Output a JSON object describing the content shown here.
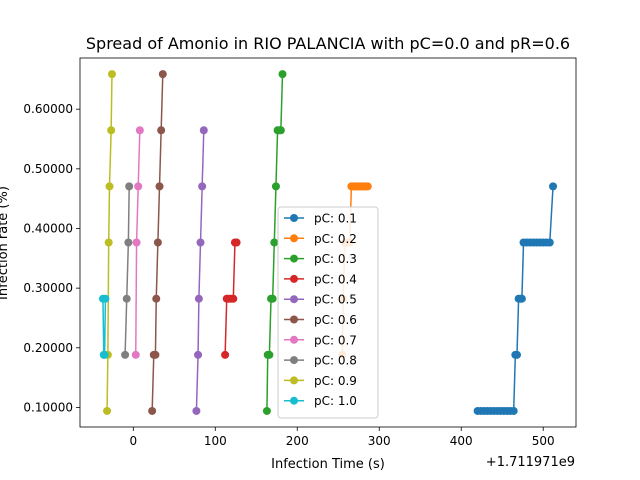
{
  "chart_data": {
    "type": "line",
    "title": "Spread of Amonio in RIO PALANCIA with pC=0.0 and pR=0.6",
    "xlabel": "Infection Time (s)",
    "ylabel": "Infection rate (%)",
    "x_offset_label": "+1.711971e9",
    "xlim": [
      -65,
      540
    ],
    "ylim": [
      0.0672,
      0.6858
    ],
    "x_ticks": [
      0,
      100,
      200,
      300,
      400,
      500
    ],
    "x_tick_labels": [
      "0",
      "100",
      "200",
      "300",
      "400",
      "500"
    ],
    "y_ticks": [
      0.1,
      0.2,
      0.3,
      0.4,
      0.5,
      0.6
    ],
    "y_tick_labels": [
      "0.10000",
      "0.20000",
      "0.30000",
      "0.40000",
      "0.50000",
      "0.60000"
    ],
    "grid": false,
    "legend_position": "lower-center",
    "series": [
      {
        "name": "pC: 0.1",
        "color": "#1f77b4",
        "x": [
          420,
          424,
          428,
          432,
          436,
          440,
          444,
          448,
          452,
          456,
          460,
          464,
          466,
          468,
          470,
          472,
          474,
          476,
          480,
          484,
          488,
          492,
          496,
          500,
          504,
          508,
          512
        ],
        "y": [
          0.0941,
          0.0941,
          0.0941,
          0.0941,
          0.0941,
          0.0941,
          0.0941,
          0.0941,
          0.0941,
          0.0941,
          0.0941,
          0.0941,
          0.1882,
          0.1882,
          0.2823,
          0.2823,
          0.2823,
          0.3765,
          0.3765,
          0.3765,
          0.3765,
          0.3765,
          0.3765,
          0.3765,
          0.3765,
          0.3765,
          0.4706
        ]
      },
      {
        "name": "pC: 0.2",
        "color": "#ff7f0e",
        "x": [
          255,
          256,
          258,
          262,
          264,
          266,
          268,
          270,
          272,
          274,
          276,
          278,
          280,
          282,
          284,
          286
        ],
        "y": [
          0.1882,
          0.2823,
          0.3765,
          0.3765,
          0.3765,
          0.4706,
          0.4706,
          0.4706,
          0.4706,
          0.4706,
          0.4706,
          0.4706,
          0.4706,
          0.4706,
          0.4706,
          0.4706
        ]
      },
      {
        "name": "pC: 0.3",
        "color": "#2ca02c",
        "x": [
          163,
          164,
          166,
          168,
          170,
          172,
          174,
          176,
          178,
          180,
          182
        ],
        "y": [
          0.0941,
          0.1882,
          0.1882,
          0.2823,
          0.2823,
          0.3765,
          0.4706,
          0.5647,
          0.5647,
          0.5647,
          0.6588
        ]
      },
      {
        "name": "pC: 0.4",
        "color": "#d62728",
        "x": [
          112,
          114,
          116,
          118,
          120,
          122,
          124,
          126
        ],
        "y": [
          0.1882,
          0.2823,
          0.2823,
          0.2823,
          0.2823,
          0.2823,
          0.3765,
          0.3765
        ]
      },
      {
        "name": "pC: 0.5",
        "color": "#9467bd",
        "x": [
          77,
          79,
          80,
          82,
          84,
          86
        ],
        "y": [
          0.0941,
          0.1882,
          0.2823,
          0.3765,
          0.4706,
          0.5647
        ]
      },
      {
        "name": "pC: 0.6",
        "color": "#8c564b",
        "x": [
          23,
          25,
          27,
          28,
          30,
          32,
          34,
          36
        ],
        "y": [
          0.0941,
          0.1882,
          0.1882,
          0.2823,
          0.3765,
          0.4706,
          0.5647,
          0.6588
        ]
      },
      {
        "name": "pC: 0.7",
        "color": "#e377c2",
        "x": [
          3,
          4,
          6,
          8
        ],
        "y": [
          0.1882,
          0.3765,
          0.4706,
          0.5647
        ]
      },
      {
        "name": "pC: 0.8",
        "color": "#7f7f7f",
        "x": [
          -10,
          -8,
          -6,
          -5
        ],
        "y": [
          0.1882,
          0.2823,
          0.3765,
          0.4706
        ]
      },
      {
        "name": "pC: 0.9",
        "color": "#bcbd22",
        "x": [
          -32,
          -31,
          -30,
          -29,
          -27,
          -26
        ],
        "y": [
          0.0941,
          0.1882,
          0.3765,
          0.4706,
          0.5647,
          0.6588
        ]
      },
      {
        "name": "pC: 1.0",
        "color": "#17becf",
        "x": [
          -37,
          -36,
          -35,
          -34
        ],
        "y": [
          0.2823,
          0.1882,
          0.1882,
          0.2823
        ]
      }
    ]
  }
}
